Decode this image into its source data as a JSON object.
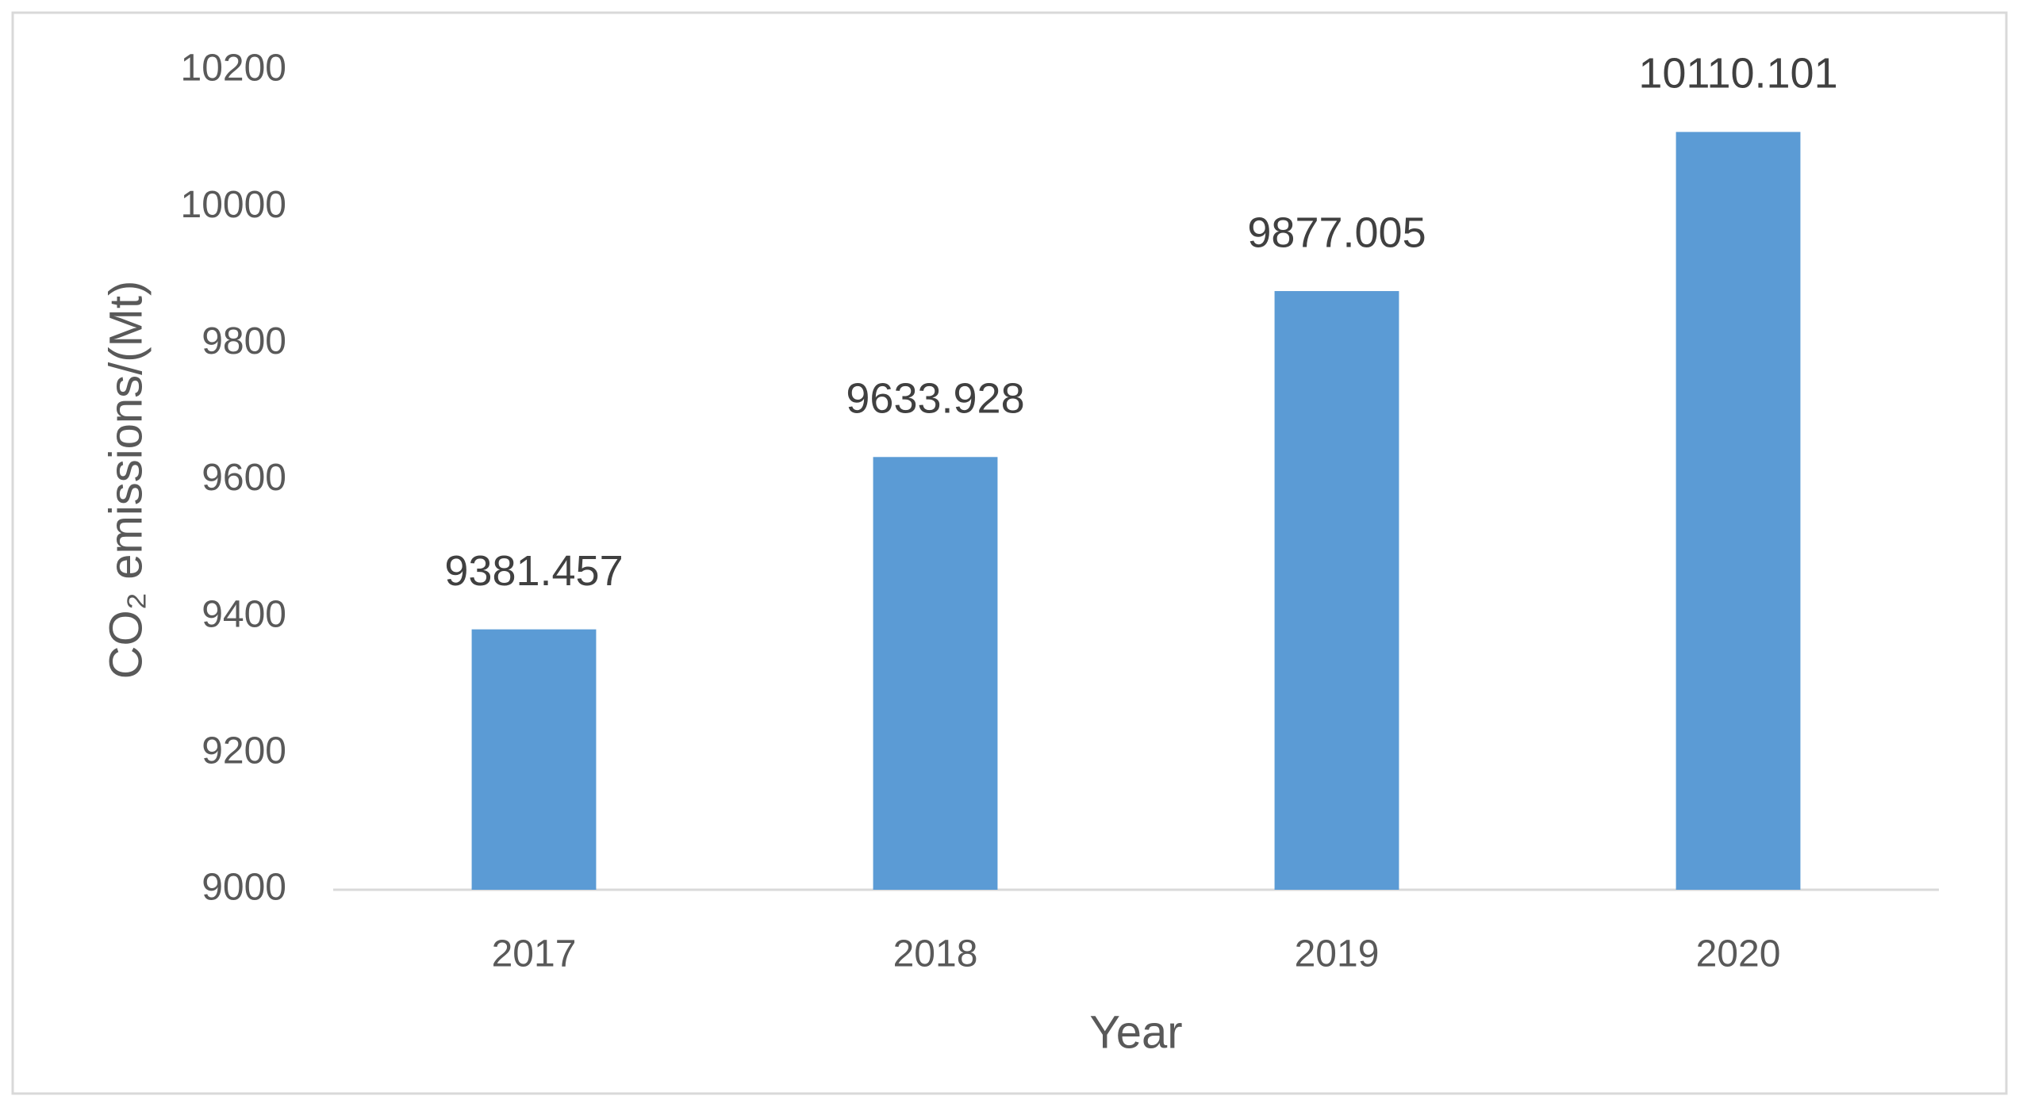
{
  "chart_data": {
    "type": "bar",
    "y_label": "CO₂ emissions/(Mt)",
    "x_label": "Year",
    "categories": [
      "2017",
      "2018",
      "2019",
      "2020"
    ],
    "values": [
      9381.457,
      9633.928,
      9877.005,
      10110.101
    ],
    "color": "#5b9bd5",
    "ylim": [
      9000,
      10200
    ],
    "yticks": [
      9000,
      9200,
      9400,
      9600,
      9800,
      10000,
      10200
    ],
    "grid": false
  }
}
